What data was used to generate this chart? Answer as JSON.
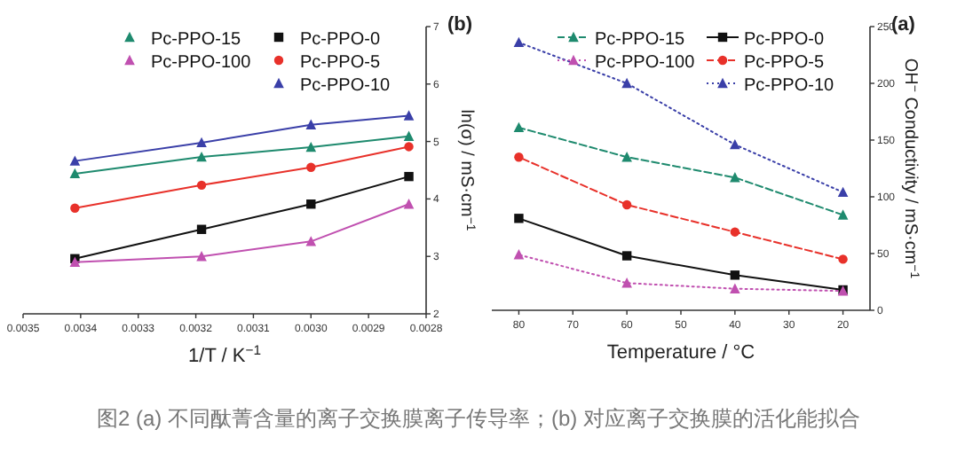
{
  "chart_data": [
    {
      "type": "line",
      "title": "(a)",
      "xlabel": "Temperature / °C",
      "ylabel": "OH$^{−}$ Conductivity / mS·cm$^{−1}$",
      "x": [
        20,
        40,
        60,
        80
      ],
      "xlim": [
        85,
        15
      ],
      "xticks": [
        20,
        30,
        40,
        50,
        60,
        70,
        80
      ],
      "ylim": [
        0,
        250
      ],
      "yticks": [
        0,
        50,
        100,
        150,
        200,
        250
      ],
      "legend": "top right",
      "annotations": [
        "图2 (a) 不同酞菁含量的离子交换膜离子传导率；(b) 对应离子交换膜的活化能拟合"
      ],
      "series": [
        {
          "name": "Pc-PPO-0",
          "color": "#111111",
          "marker": "square",
          "line_style": "solid",
          "values": [
            18,
            31,
            48,
            81
          ]
        },
        {
          "name": "Pc-PPO-15",
          "color": "#1e8a6e",
          "marker": "triangle",
          "line_style": "dashed",
          "values": [
            84,
            117,
            135,
            161
          ]
        },
        {
          "name": "Pc-PPO-5",
          "color": "#e8312a",
          "marker": "circle",
          "line_style": "dashed",
          "values": [
            45,
            69,
            93,
            135
          ]
        },
        {
          "name": "Pc-PPO-100",
          "color": "#c050b0",
          "marker": "triangle",
          "line_style": "dotted",
          "values": [
            17,
            19,
            24,
            49
          ]
        },
        {
          "name": "Pc-PPO-10",
          "color": "#3a3fa8",
          "marker": "triangle",
          "line_style": "dotted",
          "values": [
            104,
            146,
            200,
            236
          ]
        }
      ]
    },
    {
      "type": "line",
      "title": "(b)",
      "xlabel": "1/T / K$^{−1}$",
      "ylabel": "ln(σ) / mS·cm$^{−1}$",
      "x": [
        0.00283,
        0.003,
        0.00319,
        0.00341
      ],
      "xlim": [
        0.0035,
        0.0028
      ],
      "xticks": [
        {
          "value": 0.0028,
          "label": "0.0028"
        },
        {
          "value": 0.0029,
          "label": "0.0029"
        },
        {
          "value": 0.003,
          "label": "0.0030"
        },
        {
          "value": 0.0031,
          "label": "0.0031"
        },
        {
          "value": 0.0032,
          "label": "0.0032"
        },
        {
          "value": 0.0033,
          "label": "0.0033"
        },
        {
          "value": 0.0034,
          "label": "0.0034"
        },
        {
          "value": 0.0035,
          "label": "0.0035"
        }
      ],
      "ylim": [
        2,
        7
      ],
      "yticks": [
        2,
        3,
        4,
        5,
        6,
        7
      ],
      "legend": "top right",
      "series": [
        {
          "name": "Pc-PPO-0",
          "color": "#111111",
          "marker": "square",
          "line_style": "solid",
          "values": [
            4.39,
            3.91,
            3.47,
            2.96
          ]
        },
        {
          "name": "Pc-PPO-15",
          "color": "#1e8a6e",
          "marker": "triangle",
          "line_style": "solid",
          "values": [
            5.09,
            4.9,
            4.73,
            4.44
          ]
        },
        {
          "name": "Pc-PPO-5",
          "color": "#e8312a",
          "marker": "circle",
          "line_style": "solid",
          "values": [
            4.91,
            4.55,
            4.24,
            3.84
          ]
        },
        {
          "name": "Pc-PPO-100",
          "color": "#c050b0",
          "marker": "triangle",
          "line_style": "solid",
          "values": [
            3.91,
            3.26,
            3.0,
            2.9
          ]
        },
        {
          "name": "Pc-PPO-10",
          "color": "#3a3fa8",
          "marker": "triangle",
          "line_style": "solid",
          "values": [
            5.45,
            5.29,
            4.98,
            4.66
          ]
        }
      ]
    }
  ]
}
